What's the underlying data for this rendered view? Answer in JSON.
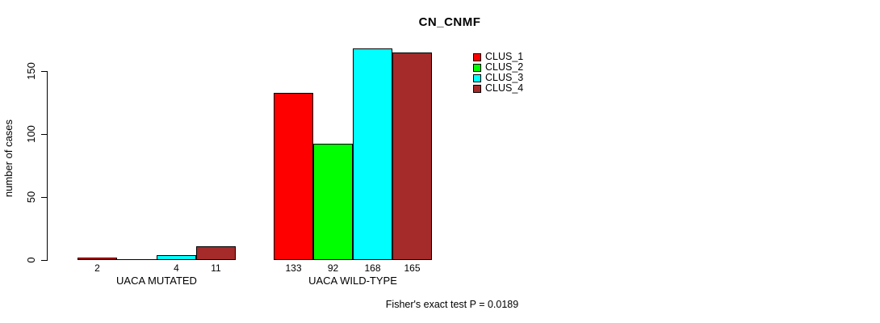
{
  "chart_data": {
    "type": "bar",
    "title": "CN_CNMF",
    "ylabel": "number of cases",
    "xlabel": "",
    "categories": [
      "UACA MUTATED",
      "UACA WILD-TYPE"
    ],
    "series": [
      {
        "name": "CLUS_1",
        "color": "#ff0000",
        "values": [
          2,
          133
        ]
      },
      {
        "name": "CLUS_2",
        "color": "#00ff00",
        "values": [
          0,
          92
        ]
      },
      {
        "name": "CLUS_3",
        "color": "#00ffff",
        "values": [
          4,
          168
        ]
      },
      {
        "name": "CLUS_4",
        "color": "#a52a2a",
        "values": [
          11,
          165
        ]
      }
    ],
    "yticks": [
      0,
      50,
      100,
      150
    ],
    "ylim": [
      0,
      150
    ],
    "bar_value_labels": [
      [
        "2",
        "",
        "4",
        "11"
      ],
      [
        "133",
        "92",
        "168",
        "165"
      ]
    ],
    "grid": false,
    "legend_position": "top-right",
    "annotation": "Fisher's exact test P = 0.0189",
    "bar_border_color": "#000000",
    "axis_color": "#000000",
    "background_color": "#ffffff"
  }
}
